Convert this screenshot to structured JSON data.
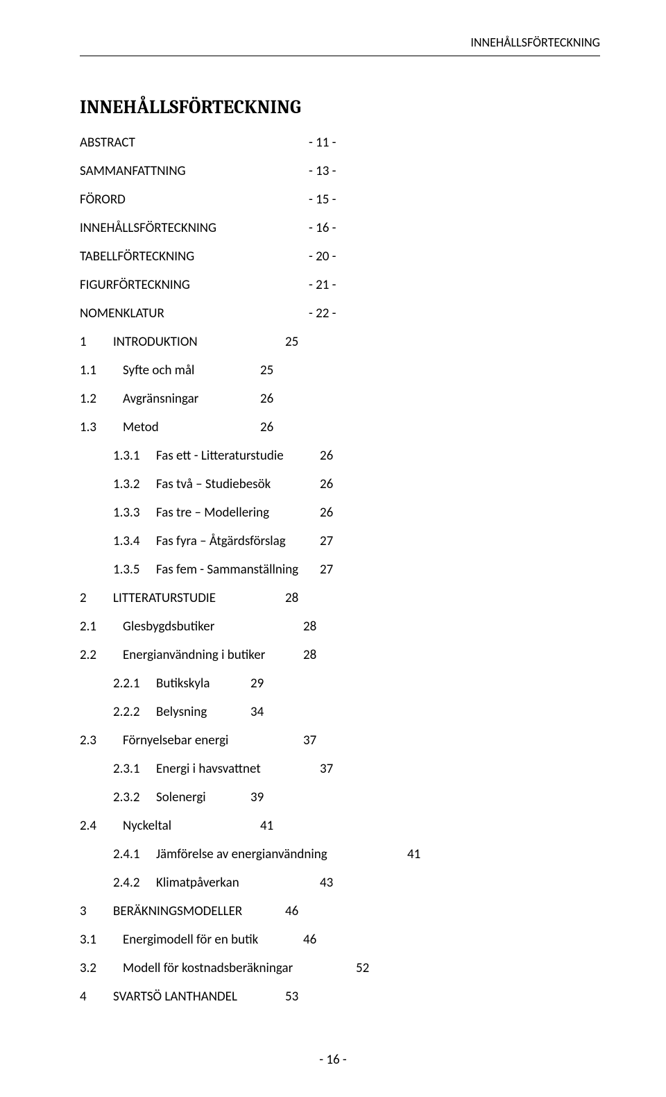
{
  "running_head": "INNEHÅLLSFÖRTECKNING",
  "doc_title": "INNEHÅLLSFÖRTECKNING",
  "front_matter": [
    {
      "title": "ABSTRACT",
      "pg": "- 11 -"
    },
    {
      "title": "SAMMANFATTNING",
      "pg": "- 13 -"
    },
    {
      "title": "FÖRORD",
      "pg": "- 15 -"
    },
    {
      "title": "INNEHÅLLSFÖRTECKNING",
      "pg": "- 16 -"
    },
    {
      "title": "TABELLFÖRTECKNING",
      "pg": "- 20 -"
    },
    {
      "title": "FIGURFÖRTECKNING",
      "pg": "- 21 -"
    },
    {
      "title": "NOMENKLATUR",
      "pg": "- 22 -"
    }
  ],
  "entries": [
    {
      "lvl": 1,
      "num": "1",
      "title": "INTRODUKTION",
      "pg": "25",
      "variant": ""
    },
    {
      "lvl": 2,
      "num": "1.1",
      "title": "Syfte och mål",
      "pg": "25",
      "variant": "compact"
    },
    {
      "lvl": 2,
      "num": "1.2",
      "title": "Avgränsningar",
      "pg": "26",
      "variant": "compact"
    },
    {
      "lvl": 2,
      "num": "1.3",
      "title": "Metod",
      "pg": "26",
      "variant": "compact"
    },
    {
      "lvl": 3,
      "num": "1.3.1",
      "title": "Fas ett - Litteraturstudie",
      "pg": "26",
      "variant": ""
    },
    {
      "lvl": 3,
      "num": "1.3.2",
      "title": "Fas två – Studiebesök",
      "pg": "26",
      "variant": ""
    },
    {
      "lvl": 3,
      "num": "1.3.3",
      "title": "Fas tre – Modellering",
      "pg": "26",
      "variant": ""
    },
    {
      "lvl": 3,
      "num": "1.3.4",
      "title": "Fas fyra – Åtgärdsförslag",
      "pg": "27",
      "variant": ""
    },
    {
      "lvl": 3,
      "num": "1.3.5",
      "title": "Fas fem - Sammanställning",
      "pg": "27",
      "variant": ""
    },
    {
      "lvl": 1,
      "num": "2",
      "title": "LITTERATURSTUDIE",
      "pg": "28",
      "variant": ""
    },
    {
      "lvl": 2,
      "num": "2.1",
      "title": "Glesbygdsbutiker",
      "pg": "28",
      "variant": ""
    },
    {
      "lvl": 2,
      "num": "2.2",
      "title": "Energianvändning i butiker",
      "pg": "28",
      "variant": ""
    },
    {
      "lvl": 3,
      "num": "2.2.1",
      "title": "Butikskyla",
      "pg": "29",
      "variant": "compact"
    },
    {
      "lvl": 3,
      "num": "2.2.2",
      "title": "Belysning",
      "pg": "34",
      "variant": "compact"
    },
    {
      "lvl": 2,
      "num": "2.3",
      "title": "Förnyelsebar energi",
      "pg": "37",
      "variant": ""
    },
    {
      "lvl": 3,
      "num": "2.3.1",
      "title": "Energi i havsvattnet",
      "pg": "37",
      "variant": ""
    },
    {
      "lvl": 3,
      "num": "2.3.2",
      "title": "Solenergi",
      "pg": "39",
      "variant": "compact"
    },
    {
      "lvl": 2,
      "num": "2.4",
      "title": "Nyckeltal",
      "pg": "41",
      "variant": "compact"
    },
    {
      "lvl": 3,
      "num": "2.4.1",
      "title": "Jämförelse av energianvändning",
      "pg": "41",
      "variant": "xwide"
    },
    {
      "lvl": 3,
      "num": "2.4.2",
      "title": "Klimatpåverkan",
      "pg": "43",
      "variant": ""
    },
    {
      "lvl": 1,
      "num": "3",
      "title": "BERÄKNINGSMODELLER",
      "pg": "46",
      "variant": ""
    },
    {
      "lvl": 2,
      "num": "3.1",
      "title": "Energimodell för en butik",
      "pg": "46",
      "variant": ""
    },
    {
      "lvl": 2,
      "num": "3.2",
      "title": "Modell för kostnadsberäkningar",
      "pg": "52",
      "variant": "wide"
    },
    {
      "lvl": 1,
      "num": "4",
      "title": "SVARTSÖ LANTHANDEL",
      "pg": "53",
      "variant": ""
    }
  ],
  "footer": "- 16 -"
}
